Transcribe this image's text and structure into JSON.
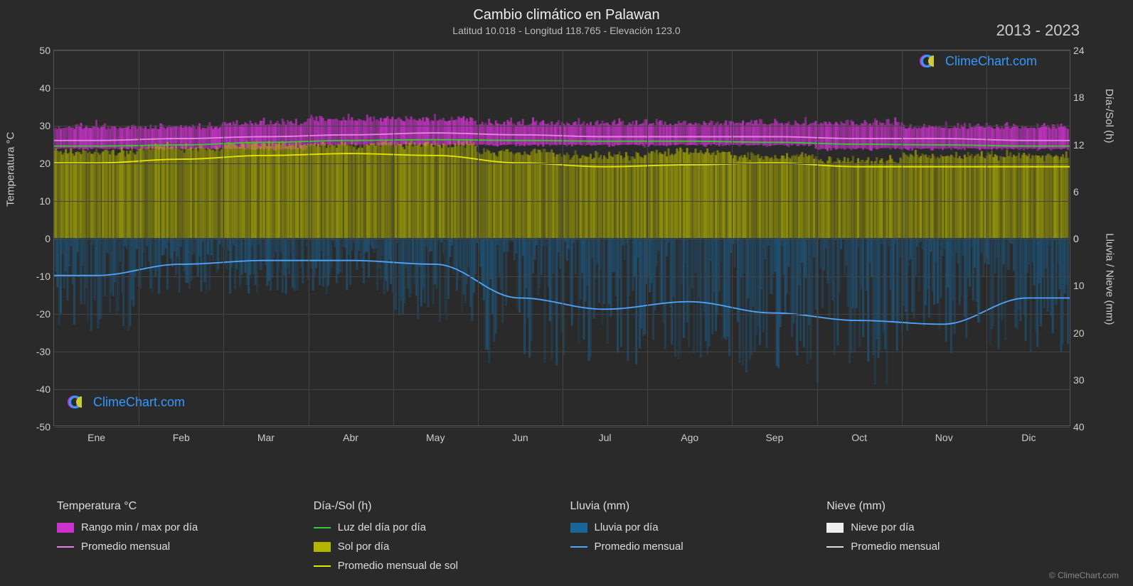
{
  "title": "Cambio climático en Palawan",
  "subtitle": "Latitud 10.018 - Longitud 118.765 - Elevación 123.0",
  "year_range": "2013 - 2023",
  "brand": "ClimeChart.com",
  "copyright": "© ClimeChart.com",
  "logo_colors": {
    "c_blue": "#3399ff",
    "c_magenta": "#cc33cc",
    "sun": "#cccc33",
    "brand_text": "#3399ff"
  },
  "chart": {
    "background_color": "#2a2a2a",
    "grid_color": "#444444",
    "text_color": "#cccccc",
    "left_axis": {
      "title": "Temperatura °C",
      "min": -50,
      "max": 50,
      "ticks": [
        -50,
        -40,
        -30,
        -20,
        -10,
        0,
        10,
        20,
        30,
        40,
        50
      ]
    },
    "right_axis_top": {
      "title": "Día-/Sol (h)",
      "min": 0,
      "max": 24,
      "ticks": [
        0,
        6,
        12,
        18,
        24
      ]
    },
    "right_axis_bottom": {
      "title": "Lluvia / Nieve (mm)",
      "min": 0,
      "max": 40,
      "ticks": [
        0,
        10,
        20,
        30,
        40
      ]
    },
    "months": [
      "Ene",
      "Feb",
      "Mar",
      "Abr",
      "May",
      "Jun",
      "Jul",
      "Ago",
      "Sep",
      "Oct",
      "Nov",
      "Dic"
    ],
    "bands": {
      "temp_range": {
        "color": "#cc33cc",
        "opacity": 0.85,
        "top_c": [
          29,
          29,
          30,
          31,
          31,
          30,
          30,
          30,
          30,
          30,
          29,
          29
        ],
        "bottom_c": [
          24,
          24,
          24,
          25,
          25,
          25,
          25,
          25,
          25,
          24,
          24,
          24
        ],
        "fuzz_top_c": 3,
        "fuzz_bottom_c": 1
      },
      "sun_range": {
        "color": "#b3b300",
        "opacity": 0.7,
        "top_h": [
          11,
          11.5,
          12,
          12,
          12,
          11,
          10.5,
          11,
          10.5,
          10,
          10.5,
          10.5
        ],
        "bottom_h": 0,
        "fuzz_top_h": 1
      },
      "rain_range": {
        "color": "#1a6699",
        "opacity": 0.55,
        "top_mm": 0,
        "max_mm": [
          20,
          12,
          12,
          12,
          18,
          28,
          28,
          26,
          30,
          32,
          25,
          25
        ]
      }
    },
    "lines": {
      "temp_avg": {
        "color": "#e884e8",
        "width": 1.8,
        "values_c": [
          26,
          26.5,
          27,
          27.5,
          28,
          27.5,
          27,
          27,
          27,
          26.5,
          26.5,
          26
        ]
      },
      "daylight": {
        "color": "#33cc33",
        "width": 1.8,
        "values_c": [
          24.5,
          24.8,
          25.5,
          26,
          26.2,
          26,
          25.8,
          25.8,
          25.5,
          25,
          24.8,
          24.5
        ]
      },
      "sun_avg": {
        "color": "#e6e600",
        "width": 1.8,
        "values_c": [
          20,
          21,
          22,
          22.5,
          22,
          20,
          19,
          19.5,
          20,
          19,
          19,
          19
        ]
      },
      "rain_avg": {
        "color": "#4da6ff",
        "width": 1.8,
        "values_c": [
          -10,
          -7,
          -6,
          -6,
          -7,
          -16,
          -19,
          -17,
          -20,
          -22,
          -23,
          -16
        ]
      }
    }
  },
  "legend": {
    "groups": [
      {
        "title": "Temperatura °C",
        "items": [
          {
            "type": "swatch",
            "color": "#cc33cc",
            "label": "Rango min / max por día"
          },
          {
            "type": "line",
            "color": "#e884e8",
            "label": "Promedio mensual"
          }
        ]
      },
      {
        "title": "Día-/Sol (h)",
        "items": [
          {
            "type": "line",
            "color": "#33cc33",
            "label": "Luz del día por día"
          },
          {
            "type": "swatch",
            "color": "#b3b300",
            "label": "Sol por día"
          },
          {
            "type": "line",
            "color": "#e6e600",
            "label": "Promedio mensual de sol"
          }
        ]
      },
      {
        "title": "Lluvia (mm)",
        "items": [
          {
            "type": "swatch",
            "color": "#1a6699",
            "label": "Lluvia por día"
          },
          {
            "type": "line",
            "color": "#4da6ff",
            "label": "Promedio mensual"
          }
        ]
      },
      {
        "title": "Nieve (mm)",
        "items": [
          {
            "type": "swatch",
            "color": "#eeeeee",
            "label": "Nieve por día"
          },
          {
            "type": "line",
            "color": "#dddddd",
            "label": "Promedio mensual"
          }
        ]
      }
    ]
  }
}
